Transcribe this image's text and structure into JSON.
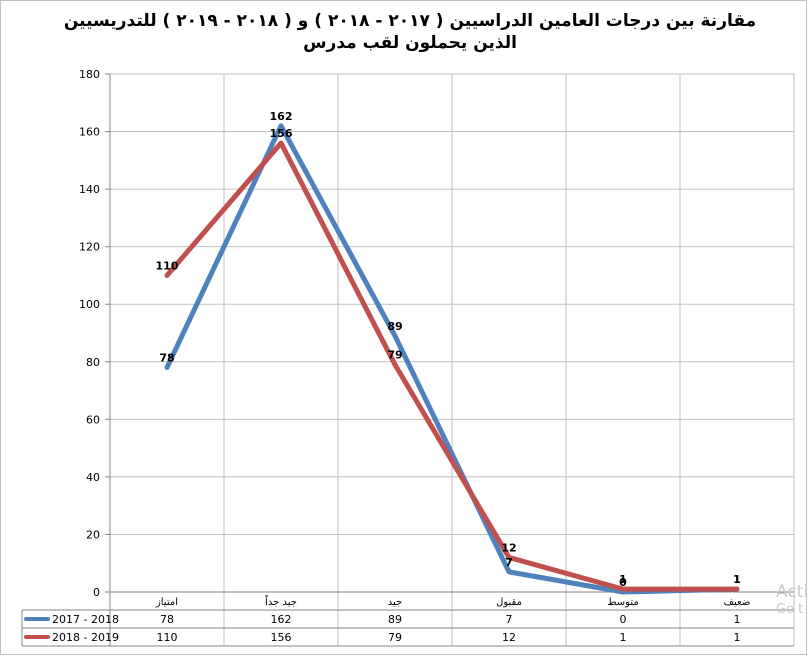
{
  "title": {
    "line1": "مقارنة بين درجات العامين الدراسيين ( ٢٠١٧ - ٢٠١٨ ) و ( ٢٠١٨ - ٢٠١٩ ) للتدريسيين",
    "line2": "الذين يحملون لقب مدرس"
  },
  "watermark": {
    "line1": "Acti",
    "line2": "Go t"
  },
  "chart_data": {
    "type": "line",
    "title": "مقارنة بين درجات العامين الدراسيين ( ٢٠١٧ - ٢٠١٨ ) و ( ٢٠١٨ - ٢٠١٩ ) للتدريسيين الذين يحملون لقب مدرس",
    "categories": [
      "امتياز",
      "جيد جداً",
      "جيد",
      "مقبول",
      "متوسط",
      "ضعيف"
    ],
    "yticks": [
      "0",
      "20",
      "40",
      "60",
      "80",
      "100",
      "120",
      "140",
      "160",
      "180"
    ],
    "ylim": [
      0,
      180
    ],
    "grid": true,
    "legend": "data-table",
    "series": [
      {
        "name": "2017 - 2018",
        "color": "#4f81bd",
        "values": [
          78,
          162,
          89,
          7,
          0,
          1
        ]
      },
      {
        "name": "2018 - 2019",
        "color": "#c0504d",
        "values": [
          110,
          156,
          79,
          12,
          1,
          1
        ]
      }
    ]
  }
}
